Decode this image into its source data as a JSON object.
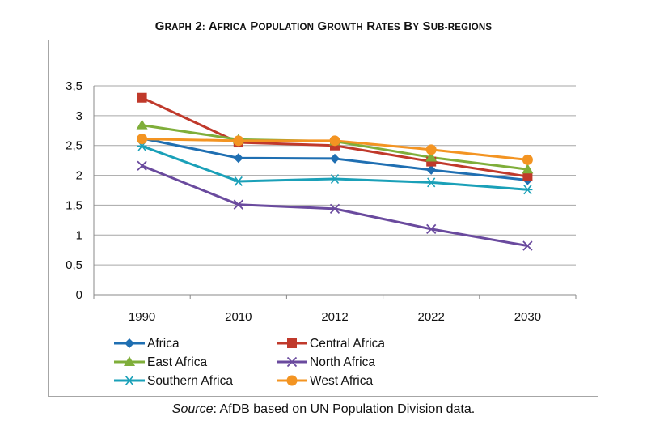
{
  "chart_data": {
    "type": "line",
    "title": "Graph 2: Africa Population Growth rates by sub-regions",
    "categories": [
      "1990",
      "2010",
      "2012",
      "2022",
      "2030"
    ],
    "ylim": [
      0,
      3.5
    ],
    "yticks": [
      "0",
      "0,5",
      "1",
      "1,5",
      "2",
      "2,5",
      "3",
      "3,5"
    ],
    "grid": true,
    "legend_position": "bottom",
    "series": [
      {
        "name": "Africa",
        "values": [
          2.62,
          2.29,
          2.28,
          2.09,
          1.92
        ],
        "color": "#1f6fb2",
        "marker": "diamond"
      },
      {
        "name": "Central Africa",
        "values": [
          3.3,
          2.55,
          2.5,
          2.23,
          1.98
        ],
        "color": "#c0392b",
        "marker": "square"
      },
      {
        "name": "East Africa",
        "values": [
          2.84,
          2.6,
          2.57,
          2.3,
          2.1
        ],
        "color": "#7fae3a",
        "marker": "triangle"
      },
      {
        "name": "North Africa",
        "values": [
          2.16,
          1.51,
          1.44,
          1.1,
          0.82
        ],
        "color": "#6a4a9e",
        "marker": "x"
      },
      {
        "name": "Southern Africa",
        "values": [
          2.49,
          1.9,
          1.94,
          1.88,
          1.76
        ],
        "color": "#1aa0b8",
        "marker": "star"
      },
      {
        "name": "West Africa",
        "values": [
          2.61,
          2.58,
          2.58,
          2.43,
          2.26
        ],
        "color": "#f39422",
        "marker": "circle"
      }
    ]
  },
  "source": {
    "label": "Source",
    "text": ": AfDB based on UN Population Division data."
  }
}
